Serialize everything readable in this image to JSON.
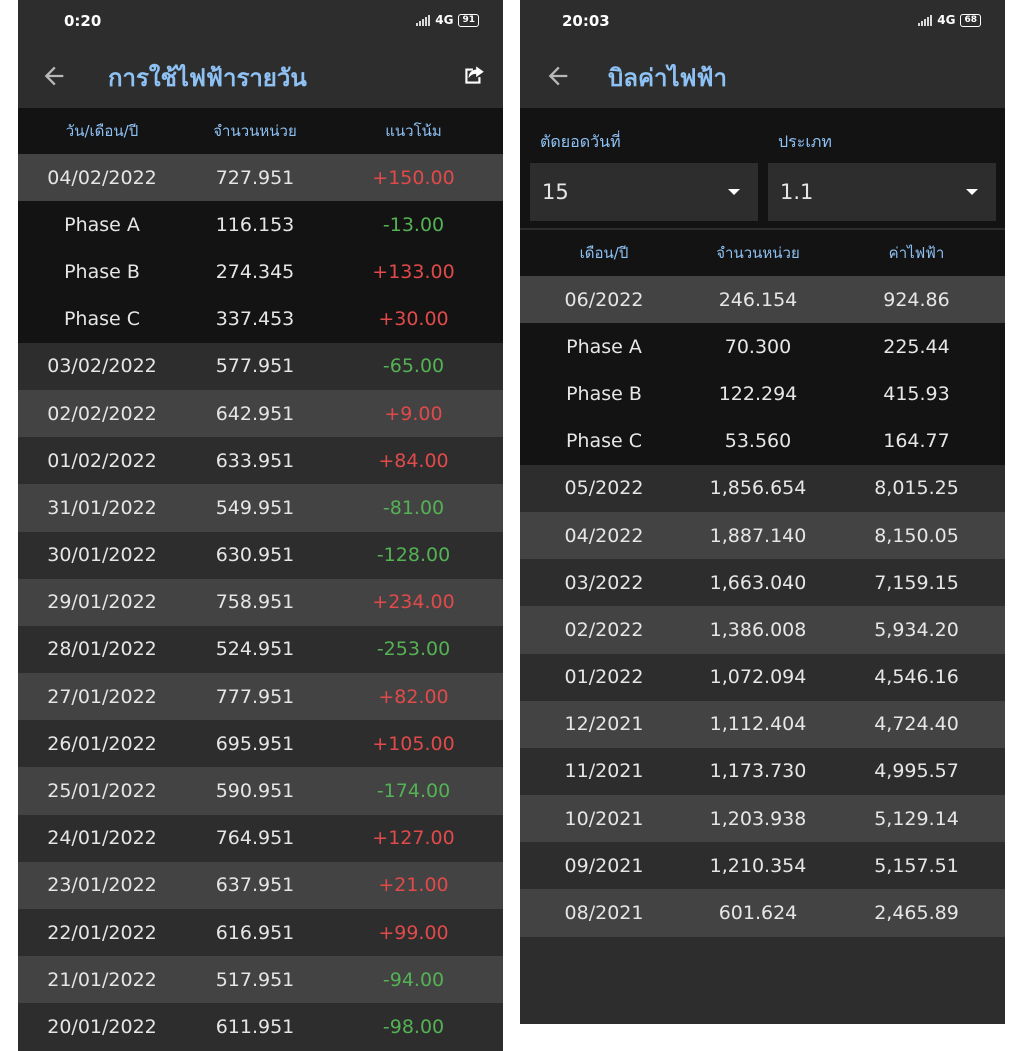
{
  "left": {
    "status": {
      "time": "0:20",
      "network": "4G",
      "battery": "91"
    },
    "title": "การใช้ไฟฟ้ารายวัน",
    "headers": [
      "วัน/เดือน/ปี",
      "จำนวนหน่วย",
      "แนวโน้ม"
    ],
    "rows": [
      {
        "label": "04/02/2022",
        "units": "727.951",
        "trend": "+150.00",
        "kind": "main"
      },
      {
        "label": "Phase A",
        "units": "116.153",
        "trend": "-13.00",
        "kind": "sub"
      },
      {
        "label": "Phase B",
        "units": "274.345",
        "trend": "+133.00",
        "kind": "sub"
      },
      {
        "label": "Phase C",
        "units": "337.453",
        "trend": "+30.00",
        "kind": "sub"
      },
      {
        "label": "03/02/2022",
        "units": "577.951",
        "trend": "-65.00",
        "kind": "main"
      },
      {
        "label": "02/02/2022",
        "units": "642.951",
        "trend": "+9.00",
        "kind": "main"
      },
      {
        "label": "01/02/2022",
        "units": "633.951",
        "trend": "+84.00",
        "kind": "main"
      },
      {
        "label": "31/01/2022",
        "units": "549.951",
        "trend": "-81.00",
        "kind": "main"
      },
      {
        "label": "30/01/2022",
        "units": "630.951",
        "trend": "-128.00",
        "kind": "main"
      },
      {
        "label": "29/01/2022",
        "units": "758.951",
        "trend": "+234.00",
        "kind": "main"
      },
      {
        "label": "28/01/2022",
        "units": "524.951",
        "trend": "-253.00",
        "kind": "main"
      },
      {
        "label": "27/01/2022",
        "units": "777.951",
        "trend": "+82.00",
        "kind": "main"
      },
      {
        "label": "26/01/2022",
        "units": "695.951",
        "trend": "+105.00",
        "kind": "main"
      },
      {
        "label": "25/01/2022",
        "units": "590.951",
        "trend": "-174.00",
        "kind": "main"
      },
      {
        "label": "24/01/2022",
        "units": "764.951",
        "trend": "+127.00",
        "kind": "main"
      },
      {
        "label": "23/01/2022",
        "units": "637.951",
        "trend": "+21.00",
        "kind": "main"
      },
      {
        "label": "22/01/2022",
        "units": "616.951",
        "trend": "+99.00",
        "kind": "main"
      },
      {
        "label": "21/01/2022",
        "units": "517.951",
        "trend": "-94.00",
        "kind": "main"
      },
      {
        "label": "20/01/2022",
        "units": "611.951",
        "trend": "-98.00",
        "kind": "main"
      }
    ]
  },
  "right": {
    "status": {
      "time": "20:03",
      "network": "4G",
      "battery": "68"
    },
    "title": "บิลค่าไฟฟ้า",
    "filters": {
      "cutoff_label": "ตัดยอดวันที่",
      "cutoff_value": "15",
      "type_label": "ประเภท",
      "type_value": "1.1"
    },
    "headers": [
      "เดือน/ปี",
      "จำนวนหน่วย",
      "ค่าไฟฟ้า"
    ],
    "rows": [
      {
        "label": "06/2022",
        "units": "246.154",
        "cost": "924.86",
        "kind": "main"
      },
      {
        "label": "Phase A",
        "units": "70.300",
        "cost": "225.44",
        "kind": "sub"
      },
      {
        "label": "Phase B",
        "units": "122.294",
        "cost": "415.93",
        "kind": "sub"
      },
      {
        "label": "Phase C",
        "units": "53.560",
        "cost": "164.77",
        "kind": "sub"
      },
      {
        "label": "05/2022",
        "units": "1,856.654",
        "cost": "8,015.25",
        "kind": "main"
      },
      {
        "label": "04/2022",
        "units": "1,887.140",
        "cost": "8,150.05",
        "kind": "main"
      },
      {
        "label": "03/2022",
        "units": "1,663.040",
        "cost": "7,159.15",
        "kind": "main"
      },
      {
        "label": "02/2022",
        "units": "1,386.008",
        "cost": "5,934.20",
        "kind": "main"
      },
      {
        "label": "01/2022",
        "units": "1,072.094",
        "cost": "4,546.16",
        "kind": "main"
      },
      {
        "label": "12/2021",
        "units": "1,112.404",
        "cost": "4,724.40",
        "kind": "main"
      },
      {
        "label": "11/2021",
        "units": "1,173.730",
        "cost": "4,995.57",
        "kind": "main"
      },
      {
        "label": "10/2021",
        "units": "1,203.938",
        "cost": "5,129.14",
        "kind": "main"
      },
      {
        "label": "09/2021",
        "units": "1,210.354",
        "cost": "5,157.51",
        "kind": "main"
      },
      {
        "label": "08/2021",
        "units": "601.624",
        "cost": "2,465.89",
        "kind": "main"
      }
    ]
  },
  "colors": {
    "accent": "#8ec1f4",
    "positive_trend": "#e04a4a",
    "negative_trend": "#54b254"
  }
}
